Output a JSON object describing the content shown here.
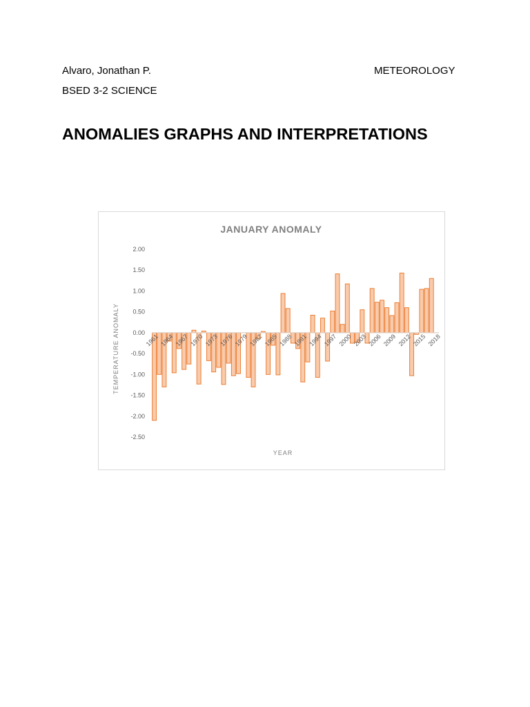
{
  "header": {
    "author": "Alvaro, Jonathan P.",
    "subject": "METEOROLOGY",
    "course": "BSED 3-2 SCIENCE"
  },
  "document": {
    "title": "ANOMALIES GRAPHS AND INTERPRETATIONS"
  },
  "colors": {
    "bar_fill": "#f8cbad",
    "bar_stroke": "#ed7d31",
    "axis_text": "#595959",
    "title_text": "#7f7f7f"
  },
  "chart_data": {
    "type": "bar",
    "title": "JANUARY ANOMALY",
    "xlabel": "YEAR",
    "ylabel": "TEMPERATURE ANOMALY",
    "ylim": [
      -2.5,
      2.0
    ],
    "yticks": [
      "2.00",
      "1.50",
      "1.00",
      "0.50",
      "0.00",
      "-0.50",
      "-1.00",
      "-1.50",
      "-2.00",
      "-2.50"
    ],
    "grid": false,
    "legend": "none",
    "categories": [
      1961,
      1962,
      1963,
      1964,
      1965,
      1966,
      1967,
      1968,
      1969,
      1970,
      1971,
      1972,
      1973,
      1974,
      1975,
      1976,
      1977,
      1978,
      1979,
      1980,
      1981,
      1982,
      1983,
      1984,
      1985,
      1986,
      1987,
      1988,
      1989,
      1990,
      1991,
      1992,
      1993,
      1994,
      1995,
      1996,
      1997,
      1998,
      1999,
      2000,
      2001,
      2002,
      2003,
      2004,
      2005,
      2006,
      2007,
      2008,
      2009,
      2010,
      2011,
      2012,
      2013,
      2014,
      2015,
      2016,
      2017,
      2018
    ],
    "xtick_labels": [
      "1961",
      "1964",
      "1967",
      "1970",
      "1973",
      "1976",
      "1979",
      "1982",
      "1985",
      "1988",
      "1991",
      "1994",
      "1997",
      "2000",
      "2003",
      "2006",
      "2009",
      "2012",
      "2015",
      "2018"
    ],
    "values": [
      -2.1,
      -1.0,
      -1.3,
      -0.2,
      -0.96,
      -0.38,
      -0.88,
      -0.75,
      0.06,
      -1.23,
      0.04,
      -0.67,
      -0.94,
      -0.83,
      -1.24,
      -0.73,
      -1.03,
      -0.98,
      0.0,
      -1.07,
      -1.3,
      -0.15,
      0.03,
      -1.0,
      -0.3,
      -1.01,
      0.94,
      0.58,
      -0.25,
      -0.38,
      -1.18,
      -0.7,
      0.42,
      -1.07,
      0.35,
      -0.68,
      0.52,
      1.41,
      0.2,
      1.17,
      -0.25,
      -0.23,
      0.55,
      -0.25,
      1.06,
      0.73,
      0.78,
      0.6,
      0.41,
      0.72,
      1.43,
      0.6,
      -1.03,
      -0.04,
      1.04,
      1.06,
      1.3,
      0.0
    ]
  }
}
